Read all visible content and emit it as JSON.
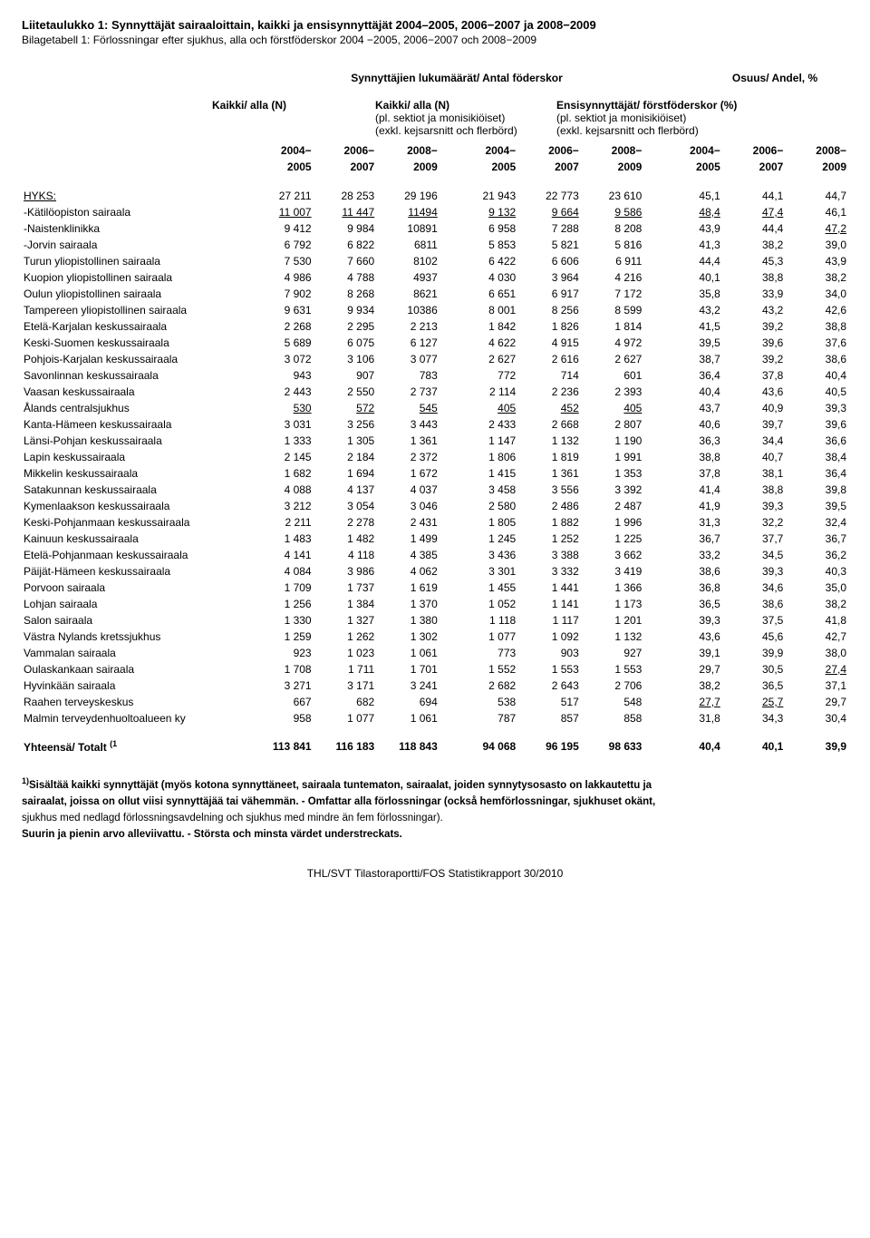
{
  "titles": {
    "line1": "Liitetaulukko 1: Synnyttäjät sairaaloittain, kaikki ja ensisynnyttäjät 2004–2005, 2006−2007 ja 2008−2009",
    "line2": "Bilagetabell 1: Förlossningar efter sjukhus, alla och förstföderskor 2004 −2005, 2006−2007 och 2008−2009"
  },
  "superheader": {
    "left": "Synnyttäjien lukumäärät/ Antal föderskor",
    "right": "Osuus/ Andel, %"
  },
  "groupheaders": {
    "g1": "Kaikki/ alla (N)",
    "g2": "Kaikki/ alla (N)",
    "g2_sub1": "(pl. sektiot ja monisikiöiset)",
    "g2_sub2": "(exkl. kejsarsnitt och flerbörd)",
    "g3": "Ensisynnyttäjät/ förstföderskor (%)",
    "g3_sub1": "(pl. sektiot ja monisikiöiset)",
    "g3_sub2": "(exkl. kejsarsnitt och flerbörd)"
  },
  "years": {
    "a": "2004−",
    "a2": "2005",
    "b": "2006−",
    "b2": "2007",
    "c": "2008−",
    "c2": "2009"
  },
  "rows": [
    {
      "label": "HYKS:",
      "u": [
        true,
        false,
        false,
        false,
        false,
        false,
        false,
        false,
        false,
        false
      ],
      "v": [
        "27 211",
        "28 253",
        "29 196",
        "21 943",
        "22 773",
        "23 610",
        "45,1",
        "44,1",
        "44,7"
      ]
    },
    {
      "label": "-Kätilöopiston sairaala",
      "u": [
        false,
        true,
        true,
        true,
        true,
        true,
        true,
        true,
        true,
        false
      ],
      "v": [
        "11 007",
        "11 447",
        "11494",
        "9 132",
        "9 664",
        "9 586",
        "48,4",
        "47,4",
        "46,1"
      ]
    },
    {
      "label": "-Naistenklinikka",
      "u": [
        false,
        false,
        false,
        false,
        false,
        false,
        false,
        false,
        false,
        true
      ],
      "v": [
        "9 412",
        "9 984",
        "10891",
        "6 958",
        "7 288",
        "8 208",
        "43,9",
        "44,4",
        "47,2"
      ]
    },
    {
      "label": "-Jorvin sairaala",
      "u": [
        false,
        false,
        false,
        false,
        false,
        false,
        false,
        false,
        false,
        false
      ],
      "v": [
        "6 792",
        "6 822",
        "6811",
        "5 853",
        "5 821",
        "5 816",
        "41,3",
        "38,2",
        "39,0"
      ]
    },
    {
      "label": "Turun yliopistollinen sairaala",
      "u": [
        false,
        false,
        false,
        false,
        false,
        false,
        false,
        false,
        false,
        false
      ],
      "v": [
        "7 530",
        "7 660",
        "8102",
        "6 422",
        "6 606",
        "6 911",
        "44,4",
        "45,3",
        "43,9"
      ]
    },
    {
      "label": "Kuopion yliopistollinen sairaala",
      "u": [
        false,
        false,
        false,
        false,
        false,
        false,
        false,
        false,
        false,
        false
      ],
      "v": [
        "4 986",
        "4 788",
        "4937",
        "4 030",
        "3 964",
        "4 216",
        "40,1",
        "38,8",
        "38,2"
      ]
    },
    {
      "label": "Oulun yliopistollinen sairaala",
      "u": [
        false,
        false,
        false,
        false,
        false,
        false,
        false,
        false,
        false,
        false
      ],
      "v": [
        "7 902",
        "8 268",
        "8621",
        "6 651",
        "6 917",
        "7 172",
        "35,8",
        "33,9",
        "34,0"
      ]
    },
    {
      "label": "Tampereen yliopistollinen sairaala",
      "u": [
        false,
        false,
        false,
        false,
        false,
        false,
        false,
        false,
        false,
        false
      ],
      "v": [
        "9 631",
        "9 934",
        "10386",
        "8 001",
        "8 256",
        "8 599",
        "43,2",
        "43,2",
        "42,6"
      ]
    },
    {
      "label": "Etelä-Karjalan keskussairaala",
      "u": [
        false,
        false,
        false,
        false,
        false,
        false,
        false,
        false,
        false,
        false
      ],
      "v": [
        "2 268",
        "2 295",
        "2 213",
        "1 842",
        "1 826",
        "1 814",
        "41,5",
        "39,2",
        "38,8"
      ]
    },
    {
      "label": "Keski-Suomen keskussairaala",
      "u": [
        false,
        false,
        false,
        false,
        false,
        false,
        false,
        false,
        false,
        false
      ],
      "v": [
        "5 689",
        "6 075",
        "6 127",
        "4 622",
        "4 915",
        "4 972",
        "39,5",
        "39,6",
        "37,6"
      ]
    },
    {
      "label": "Pohjois-Karjalan keskussairaala",
      "u": [
        false,
        false,
        false,
        false,
        false,
        false,
        false,
        false,
        false,
        false
      ],
      "v": [
        "3 072",
        "3 106",
        "3 077",
        "2 627",
        "2 616",
        "2 627",
        "38,7",
        "39,2",
        "38,6"
      ]
    },
    {
      "label": "Savonlinnan keskussairaala",
      "u": [
        false,
        false,
        false,
        false,
        false,
        false,
        false,
        false,
        false,
        false
      ],
      "v": [
        "943",
        "907",
        "783",
        "772",
        "714",
        "601",
        "36,4",
        "37,8",
        "40,4"
      ]
    },
    {
      "label": "Vaasan keskussairaala",
      "u": [
        false,
        false,
        false,
        false,
        false,
        false,
        false,
        false,
        false,
        false
      ],
      "v": [
        "2 443",
        "2 550",
        "2 737",
        "2 114",
        "2 236",
        "2 393",
        "40,4",
        "43,6",
        "40,5"
      ]
    },
    {
      "label": "Ålands centralsjukhus",
      "u": [
        false,
        true,
        true,
        true,
        true,
        true,
        true,
        false,
        false,
        false
      ],
      "v": [
        "530",
        "572",
        "545",
        "405",
        "452",
        "405",
        "43,7",
        "40,9",
        "39,3"
      ]
    },
    {
      "label": "Kanta-Hämeen keskussairaala",
      "u": [
        false,
        false,
        false,
        false,
        false,
        false,
        false,
        false,
        false,
        false
      ],
      "v": [
        "3 031",
        "3 256",
        "3 443",
        "2 433",
        "2 668",
        "2 807",
        "40,6",
        "39,7",
        "39,6"
      ]
    },
    {
      "label": "Länsi-Pohjan keskussairaala",
      "u": [
        false,
        false,
        false,
        false,
        false,
        false,
        false,
        false,
        false,
        false
      ],
      "v": [
        "1 333",
        "1 305",
        "1 361",
        "1 147",
        "1 132",
        "1 190",
        "36,3",
        "34,4",
        "36,6"
      ]
    },
    {
      "label": "Lapin keskussairaala",
      "u": [
        false,
        false,
        false,
        false,
        false,
        false,
        false,
        false,
        false,
        false
      ],
      "v": [
        "2 145",
        "2 184",
        "2 372",
        "1 806",
        "1 819",
        "1 991",
        "38,8",
        "40,7",
        "38,4"
      ]
    },
    {
      "label": "Mikkelin keskussairaala",
      "u": [
        false,
        false,
        false,
        false,
        false,
        false,
        false,
        false,
        false,
        false
      ],
      "v": [
        "1 682",
        "1 694",
        "1 672",
        "1 415",
        "1 361",
        "1 353",
        "37,8",
        "38,1",
        "36,4"
      ]
    },
    {
      "label": "Satakunnan keskussairaala",
      "u": [
        false,
        false,
        false,
        false,
        false,
        false,
        false,
        false,
        false,
        false
      ],
      "v": [
        "4 088",
        "4 137",
        "4 037",
        "3 458",
        "3 556",
        "3 392",
        "41,4",
        "38,8",
        "39,8"
      ]
    },
    {
      "label": "Kymenlaakson keskussairaala",
      "u": [
        false,
        false,
        false,
        false,
        false,
        false,
        false,
        false,
        false,
        false
      ],
      "v": [
        "3 212",
        "3 054",
        "3 046",
        "2 580",
        "2 486",
        "2 487",
        "41,9",
        "39,3",
        "39,5"
      ]
    },
    {
      "label": "Keski-Pohjanmaan keskussairaala",
      "u": [
        false,
        false,
        false,
        false,
        false,
        false,
        false,
        false,
        false,
        false
      ],
      "v": [
        "2 211",
        "2 278",
        "2 431",
        "1 805",
        "1 882",
        "1 996",
        "31,3",
        "32,2",
        "32,4"
      ]
    },
    {
      "label": "Kainuun keskussairaala",
      "u": [
        false,
        false,
        false,
        false,
        false,
        false,
        false,
        false,
        false,
        false
      ],
      "v": [
        "1 483",
        "1 482",
        "1 499",
        "1 245",
        "1 252",
        "1 225",
        "36,7",
        "37,7",
        "36,7"
      ]
    },
    {
      "label": "Etelä-Pohjanmaan keskussairaala",
      "u": [
        false,
        false,
        false,
        false,
        false,
        false,
        false,
        false,
        false,
        false
      ],
      "v": [
        "4 141",
        "4 118",
        "4 385",
        "3 436",
        "3 388",
        "3 662",
        "33,2",
        "34,5",
        "36,2"
      ]
    },
    {
      "label": "Päijät-Hämeen keskussairaala",
      "u": [
        false,
        false,
        false,
        false,
        false,
        false,
        false,
        false,
        false,
        false
      ],
      "v": [
        "4 084",
        "3 986",
        "4 062",
        "3 301",
        "3 332",
        "3 419",
        "38,6",
        "39,3",
        "40,3"
      ]
    },
    {
      "label": "Porvoon sairaala",
      "u": [
        false,
        false,
        false,
        false,
        false,
        false,
        false,
        false,
        false,
        false
      ],
      "v": [
        "1 709",
        "1 737",
        "1 619",
        "1 455",
        "1 441",
        "1 366",
        "36,8",
        "34,6",
        "35,0"
      ]
    },
    {
      "label": "Lohjan sairaala",
      "u": [
        false,
        false,
        false,
        false,
        false,
        false,
        false,
        false,
        false,
        false
      ],
      "v": [
        "1 256",
        "1 384",
        "1 370",
        "1 052",
        "1 141",
        "1 173",
        "36,5",
        "38,6",
        "38,2"
      ]
    },
    {
      "label": "Salon sairaala",
      "u": [
        false,
        false,
        false,
        false,
        false,
        false,
        false,
        false,
        false,
        false
      ],
      "v": [
        "1 330",
        "1 327",
        "1 380",
        "1 118",
        "1 117",
        "1 201",
        "39,3",
        "37,5",
        "41,8"
      ]
    },
    {
      "label": "Västra Nylands kretssjukhus",
      "u": [
        false,
        false,
        false,
        false,
        false,
        false,
        false,
        false,
        false,
        false
      ],
      "v": [
        "1 259",
        "1 262",
        "1 302",
        "1 077",
        "1 092",
        "1 132",
        "43,6",
        "45,6",
        "42,7"
      ]
    },
    {
      "label": "Vammalan sairaala",
      "u": [
        false,
        false,
        false,
        false,
        false,
        false,
        false,
        false,
        false,
        false
      ],
      "v": [
        "923",
        "1 023",
        "1 061",
        "773",
        "903",
        "927",
        "39,1",
        "39,9",
        "38,0"
      ]
    },
    {
      "label": "Oulaskankaan sairaala",
      "u": [
        false,
        false,
        false,
        false,
        false,
        false,
        false,
        false,
        false,
        true
      ],
      "v": [
        "1 708",
        "1 711",
        "1 701",
        "1 552",
        "1 553",
        "1 553",
        "29,7",
        "30,5",
        "27,4"
      ]
    },
    {
      "label": "Hyvinkään sairaala",
      "u": [
        false,
        false,
        false,
        false,
        false,
        false,
        false,
        false,
        false,
        false
      ],
      "v": [
        "3 271",
        "3 171",
        "3 241",
        "2 682",
        "2 643",
        "2 706",
        "38,2",
        "36,5",
        "37,1"
      ]
    },
    {
      "label": "Raahen terveyskeskus",
      "u": [
        false,
        false,
        false,
        false,
        false,
        false,
        false,
        true,
        true,
        false
      ],
      "v": [
        "667",
        "682",
        "694",
        "538",
        "517",
        "548",
        "27,7",
        "25,7",
        "29,7"
      ]
    },
    {
      "label": "Malmin terveydenhuoltoalueen ky",
      "u": [
        false,
        false,
        false,
        false,
        false,
        false,
        false,
        false,
        false,
        false
      ],
      "v": [
        "958",
        "1 077",
        "1 061",
        "787",
        "857",
        "858",
        "31,8",
        "34,3",
        "30,4"
      ]
    }
  ],
  "total": {
    "label": "Yhteensä/ Totalt",
    "sup": "(1",
    "v": [
      "113 841",
      "116 183",
      "118 843",
      "94 068",
      "96 195",
      "98 633",
      "40,4",
      "40,1",
      "39,9"
    ]
  },
  "footnotes": {
    "f1a": "1)",
    "f1b": "Sisältää kaikki synnyttäjät (myös kotona synnyttäneet, sairaala tuntematon, sairaalat, joiden synnytysosasto on lakkautettu ja",
    "f1c": "sairaalat, joissa on ollut viisi synnyttäjää tai vähemmän. - Omfattar alla förlossningar (också hemförlossningar, sjukhuset okänt,",
    "f1d": "sjukhus med nedlagd förlossningsavdelning och sjukhus med mindre än fem förlossningar).",
    "f2": "Suurin ja pienin arvo alleviivattu. - Största och minsta värdet understreckats."
  },
  "footer": "THL/SVT Tilastoraportti/FOS Statistikrapport 30/2010"
}
